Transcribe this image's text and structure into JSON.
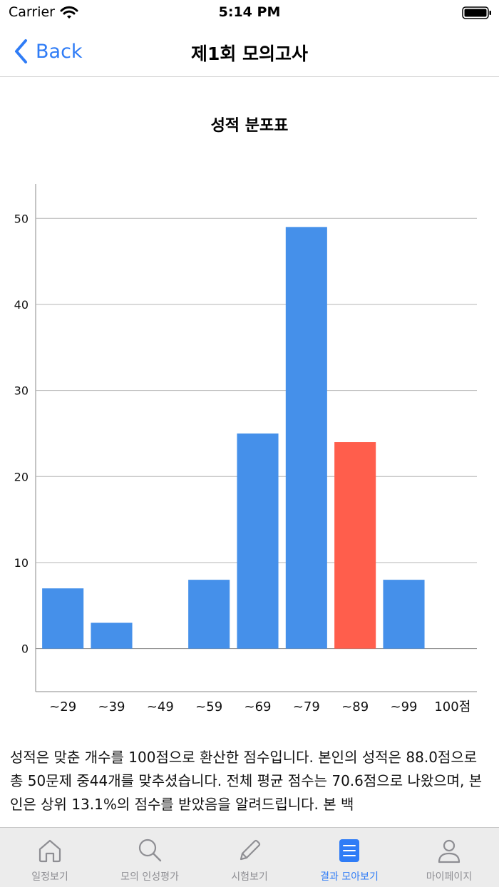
{
  "status_bar": {
    "carrier": "Carrier",
    "time": "5:14 PM"
  },
  "nav": {
    "back_label": "Back",
    "title": "제1회 모의고사"
  },
  "chart_data": {
    "type": "bar",
    "title": "성적 분포표",
    "categories": [
      "~29",
      "~39",
      "~49",
      "~59",
      "~69",
      "~79",
      "~89",
      "~99",
      "100점"
    ],
    "values": [
      7,
      3,
      0,
      8,
      25,
      49,
      24,
      8,
      0
    ],
    "highlight_index": 6,
    "bar_color": "#4590ea",
    "highlight_color": "#ff5e4c",
    "ylim": [
      -5,
      54
    ],
    "yticks": [
      0,
      10,
      20,
      30,
      40,
      50
    ],
    "grid": true,
    "xlabel": "",
    "ylabel": ""
  },
  "description": "성적은 맞춘 개수를 100점으로 환산한 점수입니다. 본인의 성적은 88.0점으로 총 50문제 중44개를 맞추셨습니다. 전체 평균 점수는 70.6점으로 나왔으며, 본인은 상위 13.1%의 점수를 받았음을 알려드립니다. 본 백",
  "tabs": [
    {
      "label": "일정보기",
      "icon": "home-icon",
      "active": false
    },
    {
      "label": "모의 인성평가",
      "icon": "search-icon",
      "active": false
    },
    {
      "label": "시험보기",
      "icon": "pencil-icon",
      "active": false
    },
    {
      "label": "결과 모아보기",
      "icon": "list-icon",
      "active": true
    },
    {
      "label": "마이페이지",
      "icon": "person-icon",
      "active": false
    }
  ]
}
